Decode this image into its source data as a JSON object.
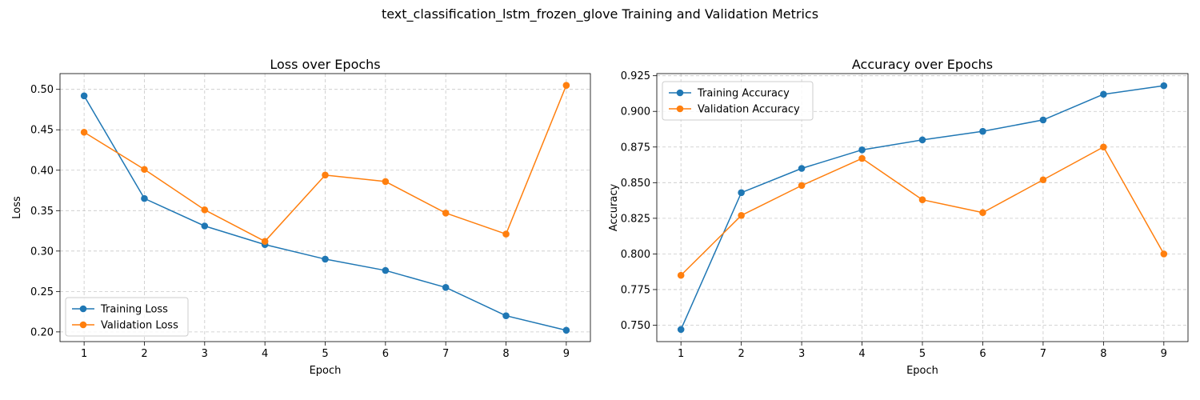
{
  "figure": {
    "title": "text_classification_lstm_frozen_glove Training and Validation Metrics"
  },
  "chart_data": [
    {
      "type": "line",
      "title": "Loss over Epochs",
      "xlabel": "Epoch",
      "ylabel": "Loss",
      "x": [
        1,
        2,
        3,
        4,
        5,
        6,
        7,
        8,
        9
      ],
      "xlim": [
        0.6,
        9.4
      ],
      "ylim": [
        0.188,
        0.5195
      ],
      "xticks": [
        1,
        2,
        3,
        4,
        5,
        6,
        7,
        8,
        9
      ],
      "yticks": [
        0.2,
        0.25,
        0.3,
        0.35,
        0.4,
        0.45,
        0.5
      ],
      "ytick_labels": [
        "0.20",
        "0.25",
        "0.30",
        "0.35",
        "0.40",
        "0.45",
        "0.50"
      ],
      "grid": true,
      "legend_position": "lower-left",
      "series": [
        {
          "name": "Training Loss",
          "color": "#1f77b4",
          "values": [
            0.492,
            0.365,
            0.331,
            0.308,
            0.29,
            0.276,
            0.255,
            0.22,
            0.202
          ]
        },
        {
          "name": "Validation Loss",
          "color": "#ff7f0e",
          "values": [
            0.447,
            0.401,
            0.351,
            0.312,
            0.394,
            0.386,
            0.347,
            0.321,
            0.505
          ]
        }
      ]
    },
    {
      "type": "line",
      "title": "Accuracy over Epochs",
      "xlabel": "Epoch",
      "ylabel": "Accuracy",
      "x": [
        1,
        2,
        3,
        4,
        5,
        6,
        7,
        8,
        9
      ],
      "xlim": [
        0.6,
        9.4
      ],
      "ylim": [
        0.7385,
        0.9265
      ],
      "xticks": [
        1,
        2,
        3,
        4,
        5,
        6,
        7,
        8,
        9
      ],
      "yticks": [
        0.75,
        0.775,
        0.8,
        0.825,
        0.85,
        0.875,
        0.9,
        0.925
      ],
      "ytick_labels": [
        "0.750",
        "0.775",
        "0.800",
        "0.825",
        "0.850",
        "0.875",
        "0.900",
        "0.925"
      ],
      "grid": true,
      "legend_position": "upper-left",
      "series": [
        {
          "name": "Training Accuracy",
          "color": "#1f77b4",
          "values": [
            0.747,
            0.843,
            0.86,
            0.873,
            0.88,
            0.886,
            0.894,
            0.912,
            0.918
          ]
        },
        {
          "name": "Validation Accuracy",
          "color": "#ff7f0e",
          "values": [
            0.785,
            0.827,
            0.848,
            0.867,
            0.838,
            0.829,
            0.852,
            0.875,
            0.8
          ]
        }
      ]
    }
  ]
}
